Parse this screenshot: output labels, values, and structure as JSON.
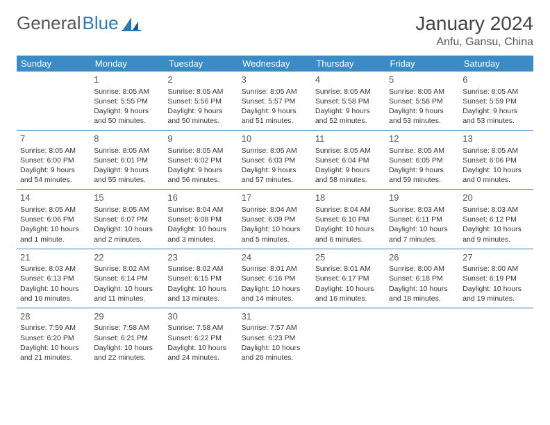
{
  "brand": {
    "name1": "General",
    "name2": "Blue",
    "icon_color": "#2a7ab8"
  },
  "title": "January 2024",
  "location": "Anfu, Gansu, China",
  "header_bg": "#3b8bc5",
  "border_color": "#2a7ab8",
  "weekdays": [
    "Sunday",
    "Monday",
    "Tuesday",
    "Wednesday",
    "Thursday",
    "Friday",
    "Saturday"
  ],
  "weeks": [
    [
      null,
      {
        "d": "1",
        "sr": "8:05 AM",
        "ss": "5:55 PM",
        "dl": "9 hours and 50 minutes."
      },
      {
        "d": "2",
        "sr": "8:05 AM",
        "ss": "5:56 PM",
        "dl": "9 hours and 50 minutes."
      },
      {
        "d": "3",
        "sr": "8:05 AM",
        "ss": "5:57 PM",
        "dl": "9 hours and 51 minutes."
      },
      {
        "d": "4",
        "sr": "8:05 AM",
        "ss": "5:58 PM",
        "dl": "9 hours and 52 minutes."
      },
      {
        "d": "5",
        "sr": "8:05 AM",
        "ss": "5:58 PM",
        "dl": "9 hours and 53 minutes."
      },
      {
        "d": "6",
        "sr": "8:05 AM",
        "ss": "5:59 PM",
        "dl": "9 hours and 53 minutes."
      }
    ],
    [
      {
        "d": "7",
        "sr": "8:05 AM",
        "ss": "6:00 PM",
        "dl": "9 hours and 54 minutes."
      },
      {
        "d": "8",
        "sr": "8:05 AM",
        "ss": "6:01 PM",
        "dl": "9 hours and 55 minutes."
      },
      {
        "d": "9",
        "sr": "8:05 AM",
        "ss": "6:02 PM",
        "dl": "9 hours and 56 minutes."
      },
      {
        "d": "10",
        "sr": "8:05 AM",
        "ss": "6:03 PM",
        "dl": "9 hours and 57 minutes."
      },
      {
        "d": "11",
        "sr": "8:05 AM",
        "ss": "6:04 PM",
        "dl": "9 hours and 58 minutes."
      },
      {
        "d": "12",
        "sr": "8:05 AM",
        "ss": "6:05 PM",
        "dl": "9 hours and 59 minutes."
      },
      {
        "d": "13",
        "sr": "8:05 AM",
        "ss": "6:06 PM",
        "dl": "10 hours and 0 minutes."
      }
    ],
    [
      {
        "d": "14",
        "sr": "8:05 AM",
        "ss": "6:06 PM",
        "dl": "10 hours and 1 minute."
      },
      {
        "d": "15",
        "sr": "8:05 AM",
        "ss": "6:07 PM",
        "dl": "10 hours and 2 minutes."
      },
      {
        "d": "16",
        "sr": "8:04 AM",
        "ss": "6:08 PM",
        "dl": "10 hours and 3 minutes."
      },
      {
        "d": "17",
        "sr": "8:04 AM",
        "ss": "6:09 PM",
        "dl": "10 hours and 5 minutes."
      },
      {
        "d": "18",
        "sr": "8:04 AM",
        "ss": "6:10 PM",
        "dl": "10 hours and 6 minutes."
      },
      {
        "d": "19",
        "sr": "8:03 AM",
        "ss": "6:11 PM",
        "dl": "10 hours and 7 minutes."
      },
      {
        "d": "20",
        "sr": "8:03 AM",
        "ss": "6:12 PM",
        "dl": "10 hours and 9 minutes."
      }
    ],
    [
      {
        "d": "21",
        "sr": "8:03 AM",
        "ss": "6:13 PM",
        "dl": "10 hours and 10 minutes."
      },
      {
        "d": "22",
        "sr": "8:02 AM",
        "ss": "6:14 PM",
        "dl": "10 hours and 11 minutes."
      },
      {
        "d": "23",
        "sr": "8:02 AM",
        "ss": "6:15 PM",
        "dl": "10 hours and 13 minutes."
      },
      {
        "d": "24",
        "sr": "8:01 AM",
        "ss": "6:16 PM",
        "dl": "10 hours and 14 minutes."
      },
      {
        "d": "25",
        "sr": "8:01 AM",
        "ss": "6:17 PM",
        "dl": "10 hours and 16 minutes."
      },
      {
        "d": "26",
        "sr": "8:00 AM",
        "ss": "6:18 PM",
        "dl": "10 hours and 18 minutes."
      },
      {
        "d": "27",
        "sr": "8:00 AM",
        "ss": "6:19 PM",
        "dl": "10 hours and 19 minutes."
      }
    ],
    [
      {
        "d": "28",
        "sr": "7:59 AM",
        "ss": "6:20 PM",
        "dl": "10 hours and 21 minutes."
      },
      {
        "d": "29",
        "sr": "7:58 AM",
        "ss": "6:21 PM",
        "dl": "10 hours and 22 minutes."
      },
      {
        "d": "30",
        "sr": "7:58 AM",
        "ss": "6:22 PM",
        "dl": "10 hours and 24 minutes."
      },
      {
        "d": "31",
        "sr": "7:57 AM",
        "ss": "6:23 PM",
        "dl": "10 hours and 26 minutes."
      },
      null,
      null,
      null
    ]
  ],
  "labels": {
    "sunrise": "Sunrise: ",
    "sunset": "Sunset: ",
    "daylight": "Daylight: "
  }
}
